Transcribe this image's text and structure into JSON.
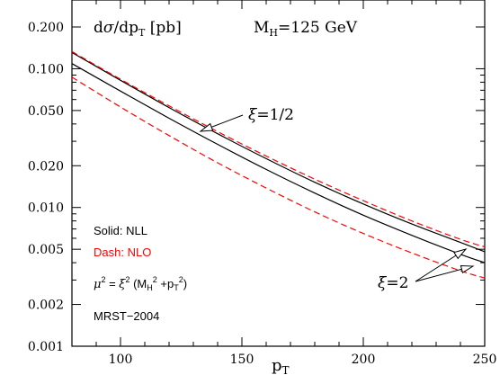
{
  "chart_data": {
    "type": "line",
    "title": "dσ/dp_T [pb]",
    "subtitle": "M_H=125 GeV",
    "xlabel": "p_T",
    "ylabel": "",
    "xlim": [
      80,
      250
    ],
    "ylim": [
      0.001,
      0.3
    ],
    "yscale": "log",
    "grid": false,
    "x_ticks": [
      100,
      150,
      200,
      250
    ],
    "x_tick_labels": [
      "100",
      "150",
      "200",
      "250"
    ],
    "y_ticks": [
      0.001,
      0.002,
      0.005,
      0.01,
      0.02,
      0.05,
      0.1,
      0.2
    ],
    "y_tick_labels": [
      "0.001",
      "0.002",
      "0.005",
      "0.010",
      "0.020",
      "0.050",
      "0.100",
      "0.200"
    ],
    "series": [
      {
        "style": "solid",
        "color": "#000000",
        "scale": "ξ=1/2",
        "x": [
          80,
          100,
          120,
          140,
          160,
          180,
          200,
          220,
          240,
          250
        ],
        "y": [
          0.131,
          0.0825,
          0.0525,
          0.034,
          0.0225,
          0.0152,
          0.0106,
          0.0076,
          0.0056,
          0.0048
        ]
      },
      {
        "style": "dashed",
        "color": "#ff0000",
        "scale": "ξ=1/2",
        "x": [
          80,
          100,
          120,
          140,
          160,
          180,
          200,
          220,
          240,
          250
        ],
        "y": [
          0.133,
          0.084,
          0.054,
          0.0352,
          0.0235,
          0.016,
          0.0112,
          0.008,
          0.0059,
          0.0052
        ]
      },
      {
        "style": "solid",
        "color": "#000000",
        "scale": "ξ=2",
        "x": [
          80,
          100,
          120,
          140,
          160,
          180,
          200,
          220,
          240,
          250
        ],
        "y": [
          0.109,
          0.069,
          0.044,
          0.0285,
          0.0188,
          0.0127,
          0.0088,
          0.0063,
          0.0046,
          0.004
        ]
      },
      {
        "style": "dashed",
        "color": "#ff0000",
        "scale": "ξ=2",
        "x": [
          80,
          100,
          120,
          140,
          160,
          180,
          200,
          220,
          240,
          250
        ],
        "y": [
          0.087,
          0.053,
          0.033,
          0.021,
          0.0138,
          0.0093,
          0.0065,
          0.0047,
          0.0035,
          0.0031
        ]
      }
    ],
    "annotations": {
      "xi_half": "ξ=1/2",
      "xi_two": "ξ=2",
      "legend_solid": "Solid: NLL",
      "legend_dash": "Dash: NLO",
      "scale_formula": "μ² = ξ² (M_H² +p_T²)",
      "pdf": "MRST−2004"
    }
  },
  "colors": {
    "nll": "#000000",
    "nlo": "#ff0000"
  }
}
